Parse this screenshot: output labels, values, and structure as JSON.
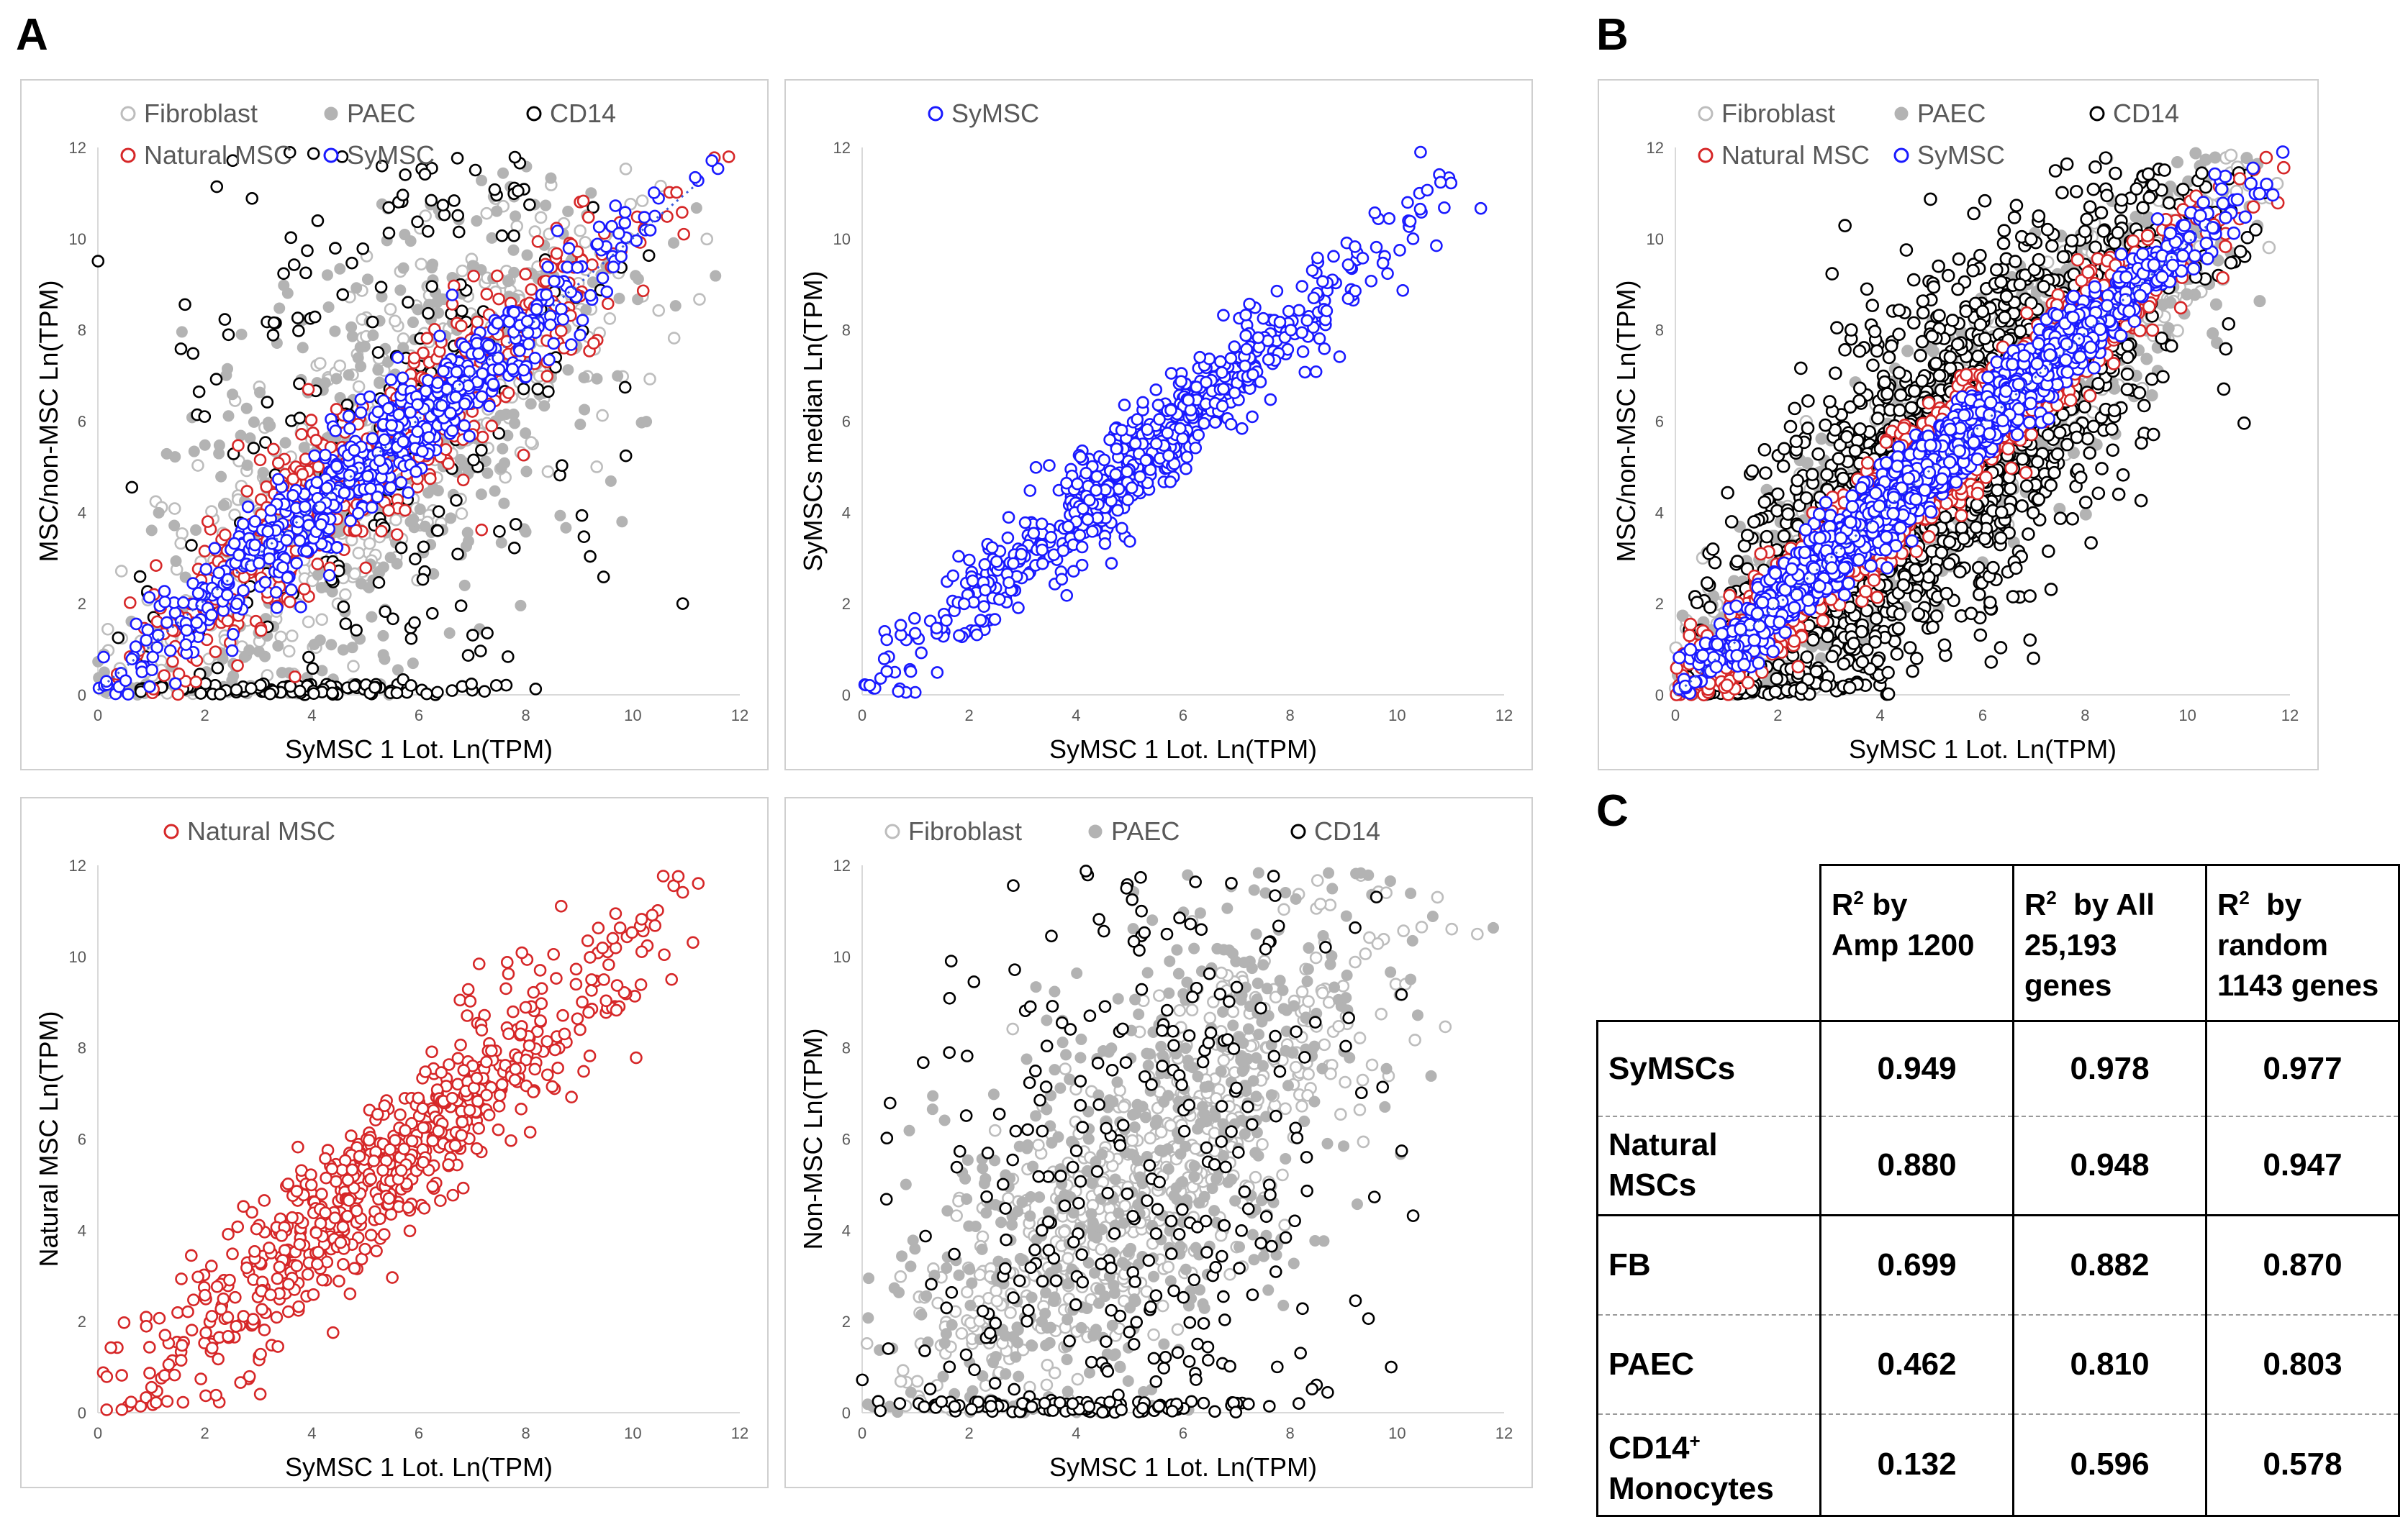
{
  "panel_labels": {
    "a": "A",
    "b": "B",
    "c": "C"
  },
  "styles": {
    "colors": {
      "fibroblast": "#bdbdbd",
      "paec": "#b3b3b3",
      "cd14": "#000000",
      "natural": "#d62728",
      "symsc": "#1a1aff",
      "axis": "#d9d9d9",
      "text": "#595959",
      "frame": "#cfcfcf"
    }
  },
  "chart_data": [
    {
      "id": "a1",
      "type": "scatter",
      "title": "",
      "xlabel": "SyMSC 1 Lot. Ln(TPM)",
      "ylabel": "MSC/non-MSC  Ln(TPM)",
      "xlim": [
        0,
        12
      ],
      "ylim": [
        0,
        12
      ],
      "xticks": [
        0,
        2,
        4,
        6,
        8,
        10,
        12
      ],
      "yticks": [
        0,
        2,
        4,
        6,
        8,
        10,
        12
      ],
      "grid": false,
      "trendline": {
        "from": [
          0,
          0.1
        ],
        "to": [
          11.2,
          11.2
        ],
        "style": "dotted",
        "series": "SyMSC"
      },
      "legend": [
        {
          "label": "Fibroblast",
          "series": "fibroblast"
        },
        {
          "label": "PAEC",
          "series": "paec"
        },
        {
          "label": "CD14",
          "series": "cd14"
        },
        {
          "label": "Natural MSC",
          "series": "natural"
        },
        {
          "label": "SyMSC",
          "series": "symsc"
        }
      ],
      "series": [
        {
          "name": "Fibroblast",
          "key": "fibroblast",
          "marker": "open",
          "approx_n": 500,
          "fit_r2": 0.699
        },
        {
          "name": "PAEC",
          "key": "paec",
          "marker": "filled",
          "approx_n": 500,
          "fit_r2": 0.462
        },
        {
          "name": "CD14",
          "key": "cd14",
          "marker": "open",
          "approx_n": 330,
          "fit_r2": 0.132
        },
        {
          "name": "Natural MSC",
          "key": "natural",
          "marker": "open",
          "approx_n": 600,
          "fit_r2": 0.88
        },
        {
          "name": "SyMSC",
          "key": "symsc",
          "marker": "open",
          "approx_n": 600,
          "fit_r2": 0.949
        }
      ]
    },
    {
      "id": "a2",
      "type": "scatter",
      "title": "",
      "xlabel": "SyMSC 1 Lot. Ln(TPM)",
      "ylabel": "SyMSCs median  Ln(TPM)",
      "xlim": [
        0,
        12
      ],
      "ylim": [
        0,
        12
      ],
      "xticks": [
        0,
        2,
        4,
        6,
        8,
        10,
        12
      ],
      "yticks": [
        0,
        2,
        4,
        6,
        8,
        10,
        12
      ],
      "grid": false,
      "legend": [
        {
          "label": "SyMSC",
          "series": "symsc"
        }
      ],
      "series": [
        {
          "name": "SyMSC",
          "key": "symsc",
          "marker": "open",
          "approx_n": 650,
          "fit_r2": 0.949
        }
      ]
    },
    {
      "id": "a3",
      "type": "scatter",
      "title": "",
      "xlabel": "SyMSC 1 Lot. Ln(TPM)",
      "ylabel": "Natural MSC  Ln(TPM)",
      "xlim": [
        0,
        12
      ],
      "ylim": [
        0,
        12
      ],
      "xticks": [
        0,
        2,
        4,
        6,
        8,
        10,
        12
      ],
      "yticks": [
        0,
        2,
        4,
        6,
        8,
        10,
        12
      ],
      "grid": false,
      "legend": [
        {
          "label": "Natural MSC",
          "series": "natural"
        }
      ],
      "series": [
        {
          "name": "Natural MSC",
          "key": "natural",
          "marker": "open",
          "approx_n": 650,
          "fit_r2": 0.88
        }
      ]
    },
    {
      "id": "a4",
      "type": "scatter",
      "title": "",
      "xlabel": "SyMSC 1 Lot. Ln(TPM)",
      "ylabel": "Non-MSC  Ln(TPM)",
      "xlim": [
        0,
        12
      ],
      "ylim": [
        0,
        12
      ],
      "xticks": [
        0,
        2,
        4,
        6,
        8,
        10,
        12
      ],
      "yticks": [
        0,
        2,
        4,
        6,
        8,
        10,
        12
      ],
      "grid": false,
      "legend": [
        {
          "label": "Fibroblast",
          "series": "fibroblast"
        },
        {
          "label": "PAEC",
          "series": "paec"
        },
        {
          "label": "CD14",
          "series": "cd14"
        }
      ],
      "series": [
        {
          "name": "Fibroblast",
          "key": "fibroblast",
          "marker": "open",
          "approx_n": 550,
          "fit_r2": 0.699
        },
        {
          "name": "PAEC",
          "key": "paec",
          "marker": "filled",
          "approx_n": 550,
          "fit_r2": 0.462
        },
        {
          "name": "CD14",
          "key": "cd14",
          "marker": "open",
          "approx_n": 380,
          "fit_r2": 0.132
        }
      ]
    },
    {
      "id": "b",
      "type": "scatter",
      "title": "",
      "xlabel": "SyMSC 1 Lot. Ln(TPM)",
      "ylabel": "MSC/non-MSC  Ln(TPM)",
      "xlim": [
        0,
        12
      ],
      "ylim": [
        0,
        12
      ],
      "xticks": [
        0,
        2,
        4,
        6,
        8,
        10,
        12
      ],
      "yticks": [
        0,
        2,
        4,
        6,
        8,
        10,
        12
      ],
      "grid": false,
      "trendline": {
        "from": [
          0,
          0
        ],
        "to": [
          10.5,
          10.4
        ],
        "style": "dotted",
        "series": "SyMSC"
      },
      "legend": [
        {
          "label": "Fibroblast",
          "series": "fibroblast"
        },
        {
          "label": "PAEC",
          "series": "paec"
        },
        {
          "label": "CD14",
          "series": "cd14"
        },
        {
          "label": "Natural MSC",
          "series": "natural"
        },
        {
          "label": "SyMSC",
          "series": "symsc"
        }
      ],
      "series": [
        {
          "name": "Fibroblast",
          "key": "fibroblast",
          "marker": "open",
          "approx_n": 1400,
          "fit_r2": 0.882
        },
        {
          "name": "PAEC",
          "key": "paec",
          "marker": "filled",
          "approx_n": 1400,
          "fit_r2": 0.81
        },
        {
          "name": "CD14",
          "key": "cd14",
          "marker": "open",
          "approx_n": 1700,
          "fit_r2": 0.596
        },
        {
          "name": "Natural MSC",
          "key": "natural",
          "marker": "open",
          "approx_n": 1700,
          "fit_r2": 0.948
        },
        {
          "name": "SyMSC",
          "key": "symsc",
          "marker": "open",
          "approx_n": 2200,
          "fit_r2": 0.978
        }
      ]
    },
    {
      "id": "c",
      "type": "table",
      "columns": [
        "",
        "R2 by Amp 1200",
        "R2 by All 25,193 genes",
        "R2 by random 1143 genes"
      ],
      "rows": [
        {
          "label": "SyMSCs",
          "values": [
            0.949,
            0.978,
            0.977
          ]
        },
        {
          "label": "Natural MSCs",
          "values": [
            0.88,
            0.948,
            0.947
          ]
        },
        {
          "label": "FB",
          "values": [
            0.699,
            0.882,
            0.87
          ]
        },
        {
          "label": "PAEC",
          "values": [
            0.462,
            0.81,
            0.803
          ]
        },
        {
          "label": "CD14+ Monocytes",
          "values": [
            0.132,
            0.596,
            0.578
          ]
        }
      ]
    }
  ],
  "table": {
    "headers": [
      {
        "pre": "R",
        "sup": "2",
        "lines": [
          " by",
          "Amp 1200"
        ]
      },
      {
        "pre": "R",
        "sup": "2",
        "lines": [
          "  by All",
          "25,193",
          "genes"
        ]
      },
      {
        "pre": "R",
        "sup": "2",
        "lines": [
          "  by",
          "random",
          "1143 genes"
        ]
      }
    ],
    "rows": [
      {
        "label_lines": [
          "SyMSCs"
        ],
        "label_sup": "",
        "values": [
          "0.949",
          "0.978",
          "0.977"
        ]
      },
      {
        "label_lines": [
          "Natural",
          "MSCs"
        ],
        "label_sup": "",
        "values": [
          "0.880",
          "0.948",
          "0.947"
        ]
      },
      {
        "label_lines": [
          "FB"
        ],
        "label_sup": "",
        "values": [
          "0.699",
          "0.882",
          "0.870"
        ]
      },
      {
        "label_lines": [
          "PAEC"
        ],
        "label_sup": "",
        "values": [
          "0.462",
          "0.810",
          "0.803"
        ]
      },
      {
        "label_lines": [
          "CD14",
          "Monocytes"
        ],
        "label_sup": "+",
        "values": [
          "0.132",
          "0.596",
          "0.578"
        ]
      }
    ]
  }
}
